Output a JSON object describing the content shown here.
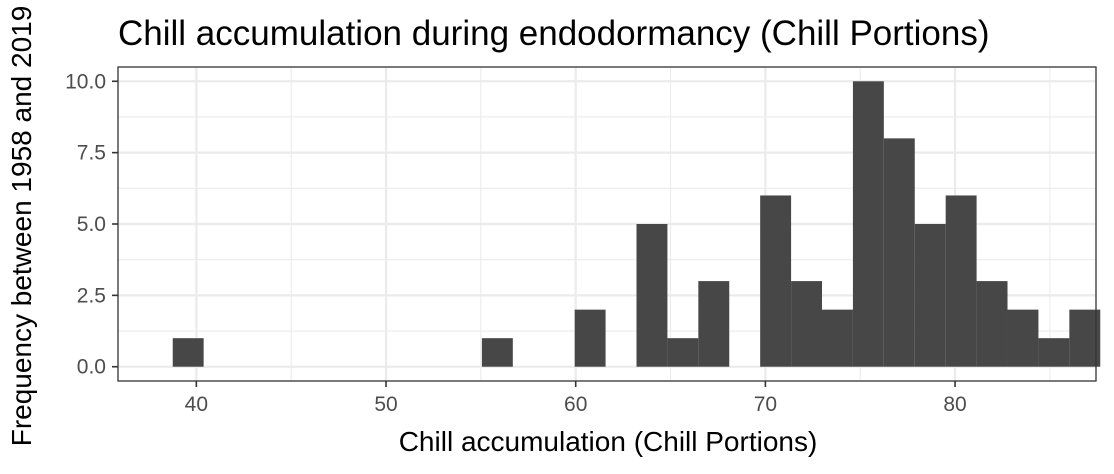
{
  "chart_data": {
    "type": "bar",
    "title": "Chill accumulation during endodormancy (Chill Portions)",
    "xlabel": "Chill accumulation (Chill Portions)",
    "ylabel": "Frequency between 1958 and 2019",
    "xlim": [
      35.87,
      87.43
    ],
    "ylim": [
      -0.5,
      10.5
    ],
    "x_ticks": [
      40,
      50,
      60,
      70,
      80
    ],
    "y_ticks": [
      0,
      2.5,
      5,
      7.5,
      10
    ],
    "y_tick_labels": [
      "0.0",
      "2.5",
      "5.0",
      "7.5",
      "10.0"
    ],
    "grid": true,
    "bin_width": 1.63,
    "bins": [
      {
        "x": 39.57,
        "count": 1
      },
      {
        "x": 41.2,
        "count": 0
      },
      {
        "x": 42.83,
        "count": 0
      },
      {
        "x": 44.46,
        "count": 0
      },
      {
        "x": 46.09,
        "count": 0
      },
      {
        "x": 47.72,
        "count": 0
      },
      {
        "x": 49.35,
        "count": 0
      },
      {
        "x": 50.98,
        "count": 0
      },
      {
        "x": 52.61,
        "count": 0
      },
      {
        "x": 54.24,
        "count": 0
      },
      {
        "x": 55.87,
        "count": 1
      },
      {
        "x": 57.5,
        "count": 0
      },
      {
        "x": 59.13,
        "count": 0
      },
      {
        "x": 60.76,
        "count": 2
      },
      {
        "x": 62.39,
        "count": 0
      },
      {
        "x": 64.02,
        "count": 5
      },
      {
        "x": 65.65,
        "count": 1
      },
      {
        "x": 67.28,
        "count": 3
      },
      {
        "x": 68.91,
        "count": 0
      },
      {
        "x": 70.54,
        "count": 6
      },
      {
        "x": 72.17,
        "count": 3
      },
      {
        "x": 73.8,
        "count": 2
      },
      {
        "x": 75.43,
        "count": 10
      },
      {
        "x": 77.06,
        "count": 8
      },
      {
        "x": 78.69,
        "count": 5
      },
      {
        "x": 80.32,
        "count": 6
      },
      {
        "x": 81.95,
        "count": 3
      },
      {
        "x": 83.58,
        "count": 2
      },
      {
        "x": 85.21,
        "count": 1
      },
      {
        "x": 86.84,
        "count": 2
      }
    ]
  }
}
